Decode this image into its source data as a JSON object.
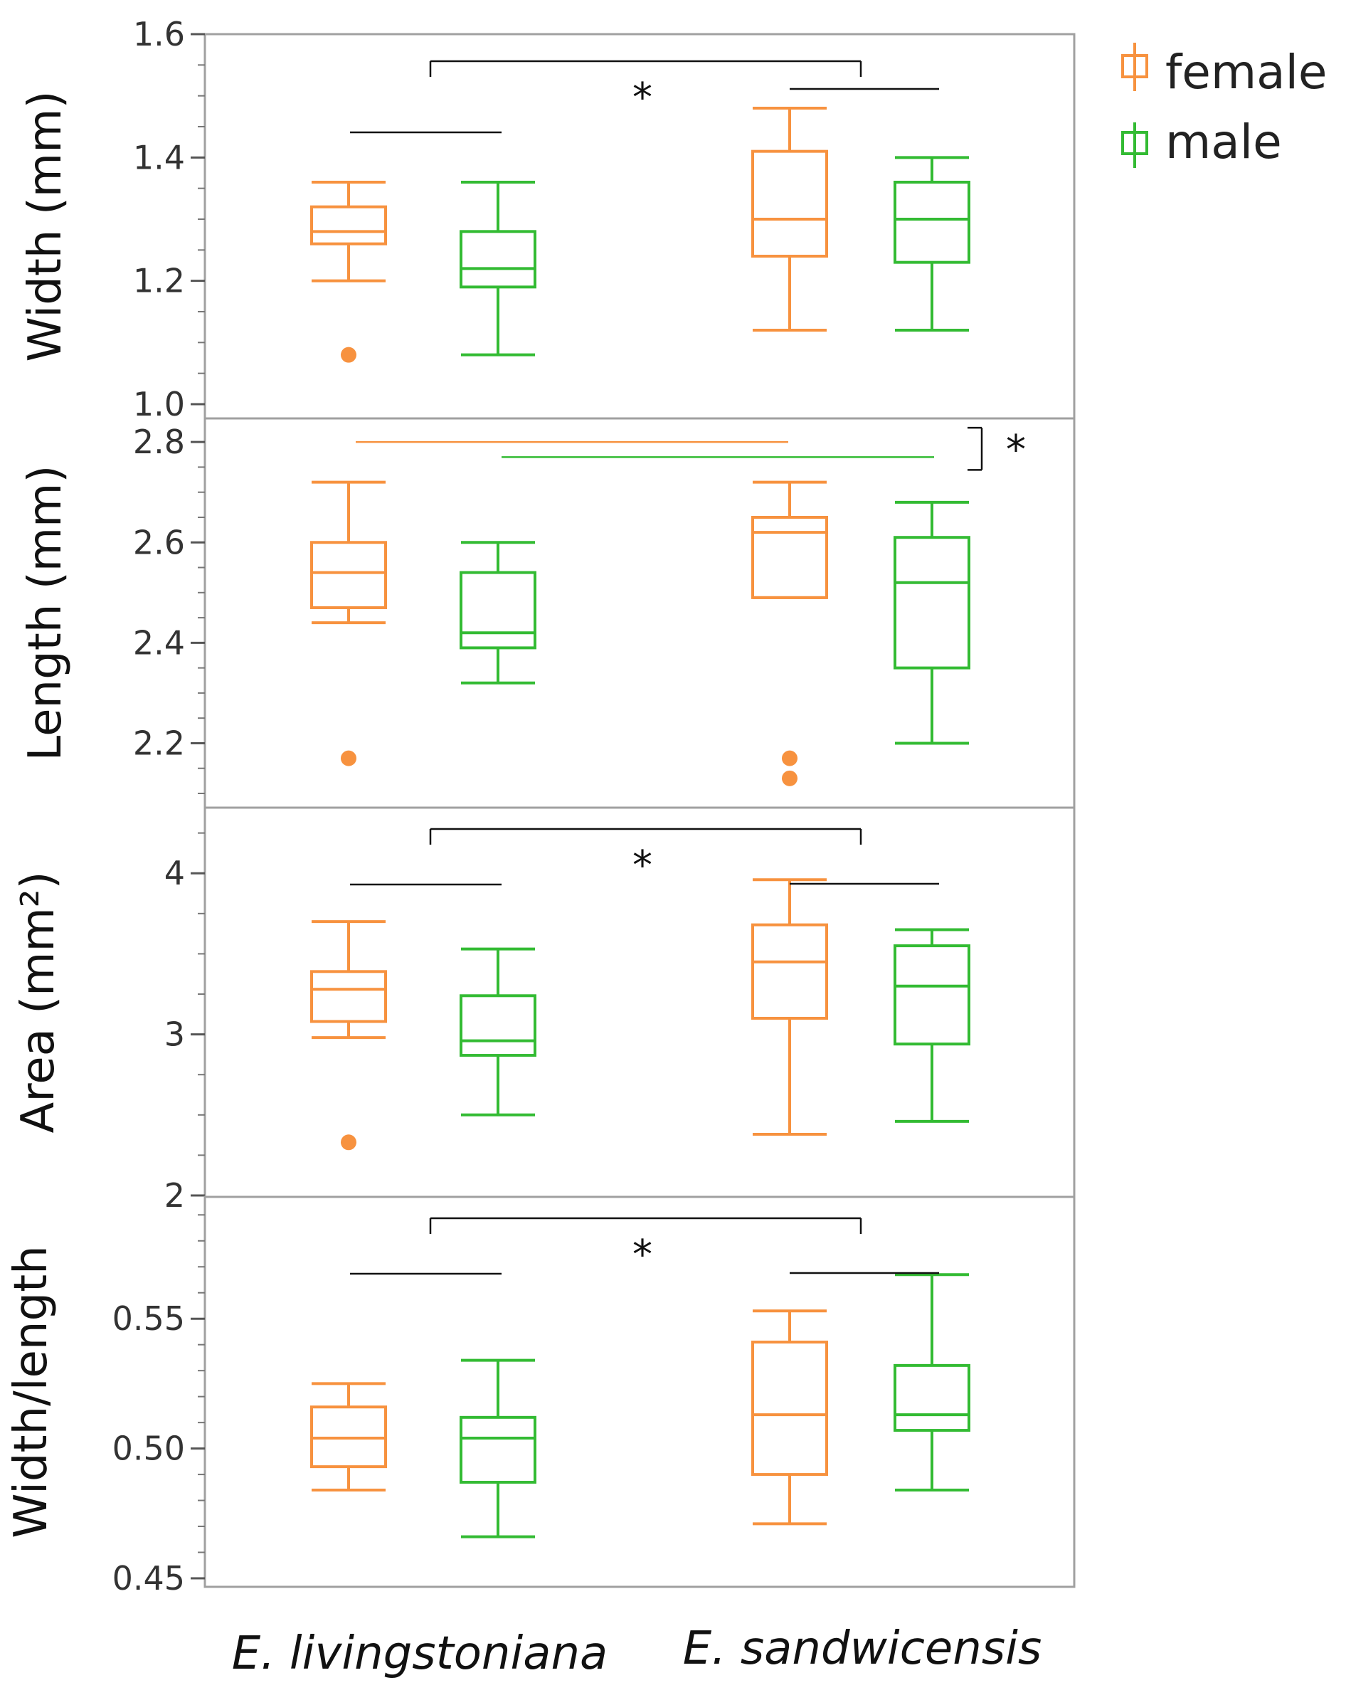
{
  "chart_data": [
    {
      "type": "box",
      "panel": "width",
      "ylabel": "Width (mm)",
      "ylim": [
        1.0,
        1.6
      ],
      "yticks": [
        1.0,
        1.2,
        1.4,
        1.6
      ],
      "ytick_labels": [
        "1.0",
        "1.2",
        "1.4",
        "1.6"
      ],
      "minor_step": 0.05,
      "boxes": [
        {
          "species": "E. livingstoniana",
          "sex": "female",
          "min": 1.2,
          "q1": 1.26,
          "median": 1.28,
          "q3": 1.32,
          "max": 1.36,
          "outliers": [
            1.08
          ]
        },
        {
          "species": "E. livingstoniana",
          "sex": "male",
          "min": 1.08,
          "q1": 1.19,
          "median": 1.22,
          "q3": 1.28,
          "max": 1.36,
          "outliers": []
        },
        {
          "species": "E. sandwicensis",
          "sex": "female",
          "min": 1.12,
          "q1": 1.24,
          "median": 1.3,
          "q3": 1.41,
          "max": 1.48,
          "outliers": []
        },
        {
          "species": "E. sandwicensis",
          "sex": "male",
          "min": 1.12,
          "q1": 1.23,
          "median": 1.3,
          "q3": 1.36,
          "max": 1.4,
          "outliers": []
        }
      ],
      "annotation": {
        "type": "species",
        "star": "*"
      }
    },
    {
      "type": "box",
      "panel": "length",
      "ylabel": "Length (mm)",
      "ylim": [
        2.1,
        2.83
      ],
      "yticks": [
        2.2,
        2.4,
        2.6,
        2.8
      ],
      "ytick_labels": [
        "2.2",
        "2.4",
        "2.6",
        "2.8"
      ],
      "minor_step": 0.05,
      "boxes": [
        {
          "species": "E. livingstoniana",
          "sex": "female",
          "min": 2.44,
          "q1": 2.47,
          "median": 2.54,
          "q3": 2.6,
          "max": 2.72,
          "outliers": [
            2.17
          ]
        },
        {
          "species": "E. livingstoniana",
          "sex": "male",
          "min": 2.32,
          "q1": 2.39,
          "median": 2.42,
          "q3": 2.54,
          "max": 2.6,
          "outliers": []
        },
        {
          "species": "E. sandwicensis",
          "sex": "female",
          "min": 2.49,
          "q1": 2.49,
          "median": 2.62,
          "q3": 2.65,
          "max": 2.72,
          "outliers": [
            2.17,
            2.13
          ]
        },
        {
          "species": "E. sandwicensis",
          "sex": "male",
          "min": 2.2,
          "q1": 2.35,
          "median": 2.52,
          "q3": 2.61,
          "max": 2.68,
          "outliers": []
        }
      ],
      "annotation": {
        "type": "sex",
        "star": "*",
        "female_line_y": 2.8,
        "male_line_y": 2.77
      }
    },
    {
      "type": "box",
      "panel": "area",
      "ylabel": "Area (mm²)",
      "ylim": [
        2.0,
        4.35
      ],
      "yticks": [
        2,
        3,
        4
      ],
      "ytick_labels": [
        "2",
        "3",
        "4"
      ],
      "minor_step": 0.25,
      "boxes": [
        {
          "species": "E. livingstoniana",
          "sex": "female",
          "min": 2.98,
          "q1": 3.08,
          "median": 3.28,
          "q3": 3.39,
          "max": 3.7,
          "outliers": [
            2.33
          ]
        },
        {
          "species": "E. livingstoniana",
          "sex": "male",
          "min": 2.5,
          "q1": 2.87,
          "median": 2.96,
          "q3": 3.24,
          "max": 3.53,
          "outliers": []
        },
        {
          "species": "E. sandwicensis",
          "sex": "female",
          "min": 2.38,
          "q1": 3.1,
          "median": 3.45,
          "q3": 3.68,
          "max": 3.96,
          "outliers": []
        },
        {
          "species": "E. sandwicensis",
          "sex": "male",
          "min": 2.46,
          "q1": 2.94,
          "median": 3.3,
          "q3": 3.55,
          "max": 3.65,
          "outliers": []
        }
      ],
      "annotation": {
        "type": "species",
        "star": "*"
      }
    },
    {
      "type": "box",
      "panel": "ratio",
      "ylabel": "Width/length",
      "ylim": [
        0.45,
        0.592
      ],
      "yticks": [
        0.45,
        0.5,
        0.55
      ],
      "ytick_labels": [
        "0.45",
        "0.50",
        "0.55"
      ],
      "minor_step": 0.01,
      "boxes": [
        {
          "species": "E. livingstoniana",
          "sex": "female",
          "min": 0.484,
          "q1": 0.493,
          "median": 0.504,
          "q3": 0.516,
          "max": 0.525,
          "outliers": []
        },
        {
          "species": "E. livingstoniana",
          "sex": "male",
          "min": 0.466,
          "q1": 0.487,
          "median": 0.504,
          "q3": 0.512,
          "max": 0.534,
          "outliers": []
        },
        {
          "species": "E. sandwicensis",
          "sex": "female",
          "min": 0.471,
          "q1": 0.49,
          "median": 0.513,
          "q3": 0.541,
          "max": 0.553,
          "outliers": []
        },
        {
          "species": "E. sandwicensis",
          "sex": "male",
          "min": 0.484,
          "q1": 0.507,
          "median": 0.513,
          "q3": 0.532,
          "max": 0.567,
          "outliers": []
        }
      ],
      "annotation": {
        "type": "species",
        "star": "*"
      }
    }
  ],
  "x_categories": [
    "E. livingstoniana",
    "E. sandwicensis"
  ],
  "legend": [
    {
      "label": "female",
      "color": "#f7923f"
    },
    {
      "label": "male",
      "color": "#33bb33"
    }
  ],
  "colors": {
    "female": "#f7923f",
    "male": "#33bb33",
    "annotation": "#111111",
    "frame": "#a0a0a0"
  }
}
